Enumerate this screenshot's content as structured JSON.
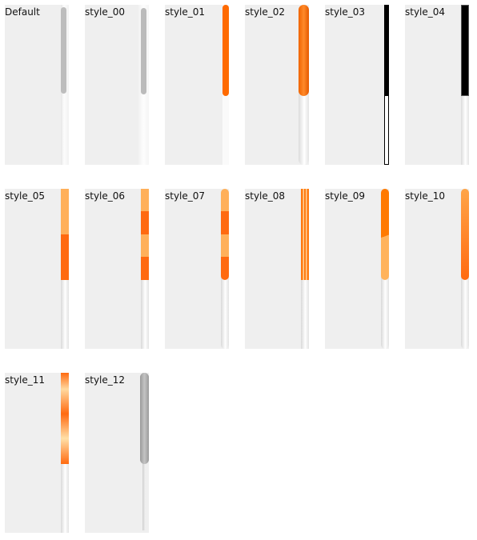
{
  "demos": [
    {
      "label": "Default",
      "style": "default"
    },
    {
      "label": "style_00",
      "style": "style_00"
    },
    {
      "label": "style_01",
      "style": "style_01"
    },
    {
      "label": "style_02",
      "style": "style_02"
    },
    {
      "label": "style_03",
      "style": "style_03"
    },
    {
      "label": "style_04",
      "style": "style_04"
    },
    {
      "label": "style_05",
      "style": "style_05"
    },
    {
      "label": "style_06",
      "style": "style_06"
    },
    {
      "label": "style_07",
      "style": "style_07"
    },
    {
      "label": "style_08",
      "style": "style_08"
    },
    {
      "label": "style_09",
      "style": "style_09"
    },
    {
      "label": "style_10",
      "style": "style_10"
    },
    {
      "label": "style_11",
      "style": "style_11"
    },
    {
      "label": "style_12",
      "style": "style_12"
    }
  ],
  "colors": {
    "accent": "#ff6a00",
    "accent_light": "#ffb05a",
    "panel_bg": "#efefef",
    "gray_thumb": "#bdbdbd"
  }
}
